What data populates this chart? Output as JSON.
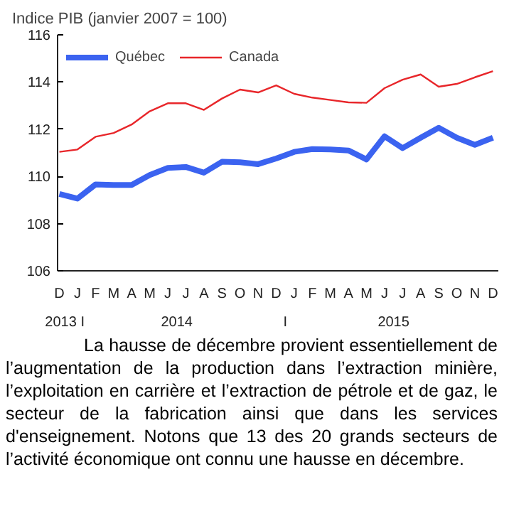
{
  "chart_data": {
    "type": "line",
    "title": "Indice PIB (janvier 2007 = 100)",
    "categories": [
      "D",
      "J",
      "F",
      "M",
      "A",
      "M",
      "J",
      "J",
      "A",
      "S",
      "O",
      "N",
      "D",
      "J",
      "F",
      "M",
      "A",
      "M",
      "J",
      "J",
      "A",
      "S",
      "O",
      "N",
      "D"
    ],
    "series": [
      {
        "name": "Québec",
        "color": "#3b63f0",
        "values": [
          109.26,
          109.06,
          109.66,
          109.64,
          109.64,
          110.06,
          110.36,
          110.4,
          110.16,
          110.62,
          110.6,
          110.52,
          110.76,
          111.04,
          111.16,
          111.14,
          111.1,
          110.72,
          111.7,
          111.2,
          111.64,
          112.06,
          111.64,
          111.34,
          111.64
        ]
      },
      {
        "name": "Canada",
        "color": "#e8262a",
        "values": [
          111.04,
          111.14,
          111.68,
          111.84,
          112.2,
          112.76,
          113.1,
          113.1,
          112.82,
          113.3,
          113.68,
          113.56,
          113.86,
          113.5,
          113.34,
          113.24,
          113.14,
          113.12,
          113.74,
          114.1,
          114.32,
          113.8,
          113.92,
          114.2,
          114.46
        ]
      }
    ],
    "ylim": [
      106,
      116
    ],
    "yticks": [
      106,
      108,
      110,
      112,
      114,
      116
    ],
    "grid": false,
    "legend": "top left",
    "marker": "none",
    "line_style": "solid",
    "annotations": [
      "2013 I",
      "2014",
      "I",
      "2015",
      "La hausse de décembre provient essentiellement de l’augmentation de la production dans l’extraction minière, l’exploitation en carrière et l’extraction de pétrole et de gaz, le secteur de la fabrication ainsi que dans les services d'enseignement. Notons que 13 des 20 grands secteurs de l’activité économique ont connu une hausse en décembre."
    ]
  }
}
